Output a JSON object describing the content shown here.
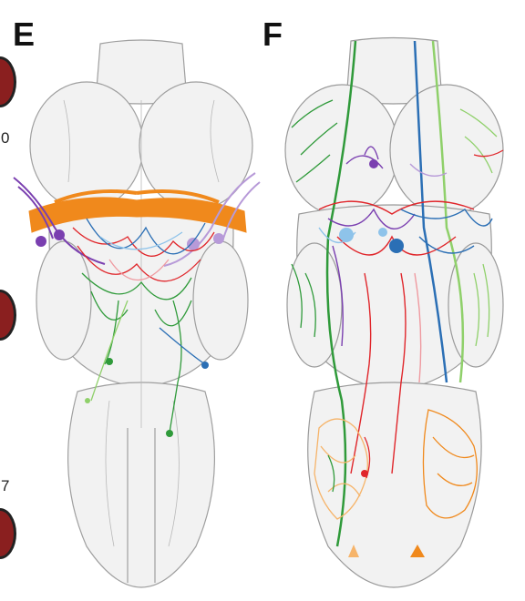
{
  "panels": [
    {
      "letter": "E"
    },
    {
      "letter": "F"
    }
  ],
  "edge_labels": [
    "0",
    "7"
  ],
  "colors": {
    "outline": "#9a9a9a",
    "tissue": "#f1f1f1",
    "orange": "#f0891c",
    "light_orange": "#f6b46a",
    "purple": "#7a3fb0",
    "lavender": "#b79ad8",
    "red": "#e0262b",
    "pink": "#ef9aa0",
    "green": "#2f9a3a",
    "light_green": "#8fd06a",
    "blue": "#2b6fb5",
    "light_blue": "#8ec3ea"
  }
}
